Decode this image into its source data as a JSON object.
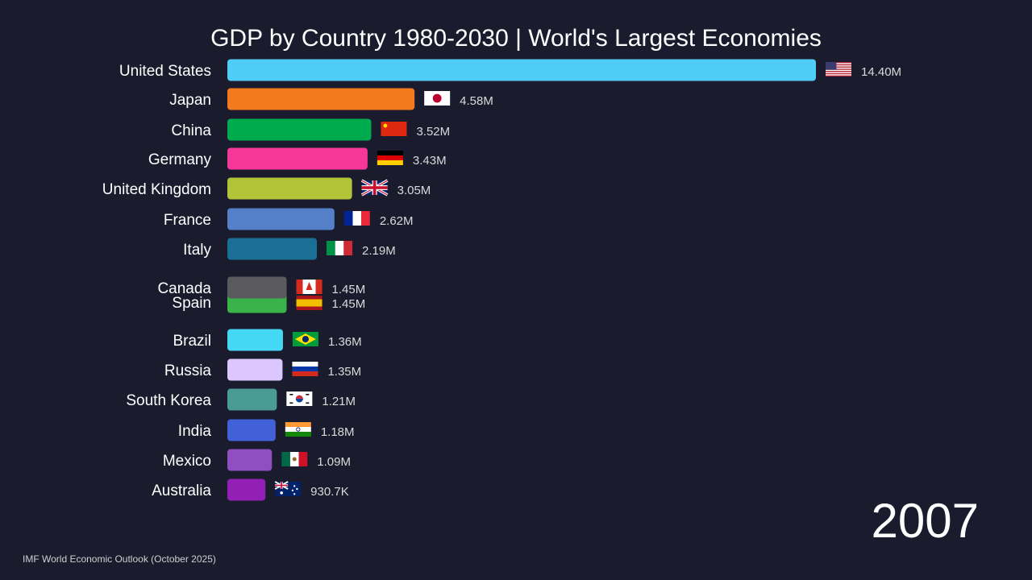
{
  "chart_data": {
    "type": "bar",
    "orientation": "horizontal",
    "title": "GDP by Country 1980-2030 | World's Largest Economies",
    "year": "2007",
    "source": "IMF World Economic Outlook (October 2025)",
    "categories": [
      "United States",
      "Japan",
      "China",
      "Germany",
      "United Kingdom",
      "France",
      "Italy",
      "Canada",
      "Spain",
      "Brazil",
      "Russia",
      "South Korea",
      "India",
      "Mexico",
      "Australia"
    ],
    "values": [
      14.4,
      4.58,
      3.52,
      3.43,
      3.05,
      2.62,
      2.19,
      1.45,
      1.45,
      1.36,
      1.35,
      1.21,
      1.18,
      1.09,
      0.9307
    ],
    "value_labels": [
      "14.40M",
      "4.58M",
      "3.52M",
      "3.43M",
      "3.05M",
      "2.62M",
      "2.19M",
      "1.45M",
      "1.45M",
      "1.36M",
      "1.35M",
      "1.21M",
      "1.18M",
      "1.09M",
      "930.7K"
    ],
    "colors": [
      "#4fcdf6",
      "#f5791f",
      "#00ab4e",
      "#f5379a",
      "#b2c33a",
      "#5380c9",
      "#1a6f96",
      "#5a5a5c",
      "#3ab44a",
      "#45d8f4",
      "#dcc6fe",
      "#4a9c92",
      "#4261d8",
      "#8f4fc0",
      "#9320b6"
    ],
    "flags": [
      "us-flag-icon",
      "jp-flag-icon",
      "cn-flag-icon",
      "de-flag-icon",
      "gb-flag-icon",
      "fr-flag-icon",
      "it-flag-icon",
      "ca-flag-icon",
      "es-flag-icon",
      "br-flag-icon",
      "ru-flag-icon",
      "kr-flag-icon",
      "in-flag-icon",
      "mx-flag-icon",
      "au-flag-icon"
    ],
    "grid": false,
    "legend": "none"
  }
}
